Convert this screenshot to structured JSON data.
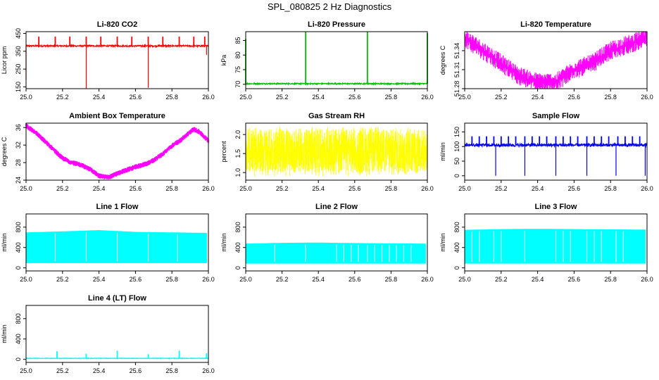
{
  "figure_title": "SPL_080825  2 Hz Diagnostics",
  "chart_data": [
    {
      "type": "line",
      "title": "Li-820 CO2",
      "ylabel": "Licor ppm",
      "color": "#ff0000",
      "xlim": [
        25.0,
        26.0
      ],
      "ylim": [
        140,
        460
      ],
      "x_ticks": [
        25.0,
        25.2,
        25.4,
        25.6,
        25.8,
        26.0
      ],
      "y_ticks": [
        150,
        250,
        350,
        450
      ],
      "x_tick_labels": [
        "25.0",
        "25.2",
        "25.4",
        "25.6",
        "25.8",
        "26.0"
      ],
      "y_tick_labels": [
        "150",
        "250",
        "350",
        "450"
      ],
      "series": [
        {
          "pattern": "spiky",
          "base": 380,
          "noise": 4,
          "min": 350,
          "max": 432,
          "up_spikes": [
            25.07,
            25.16,
            25.24,
            25.33,
            25.41,
            25.5,
            25.58,
            25.67,
            25.75,
            25.84,
            25.92,
            25.98
          ],
          "down_spikes": [
            [
              25.33,
              140
            ],
            [
              25.67,
              145
            ],
            [
              25.0,
              190
            ],
            [
              25.99,
              330
            ]
          ]
        }
      ]
    },
    {
      "type": "line",
      "title": "Li-820 Pressure",
      "ylabel": "kPa",
      "color": "#00c000",
      "xlim": [
        25.0,
        26.0
      ],
      "ylim": [
        68.5,
        88
      ],
      "x_ticks": [
        25.0,
        25.2,
        25.4,
        25.6,
        25.8,
        26.0
      ],
      "y_ticks": [
        70,
        75,
        80,
        85
      ],
      "x_tick_labels": [
        "25.0",
        "25.2",
        "25.4",
        "25.6",
        "25.8",
        "26.0"
      ],
      "y_tick_labels": [
        "70",
        "75",
        "80",
        "85"
      ],
      "series": [
        {
          "pattern": "spiky",
          "base": 70.2,
          "noise": 0.2,
          "min": 69.5,
          "max": 70.6,
          "up_spikes": [
            [
              25.0,
              85.5
            ],
            [
              25.33,
              88
            ],
            [
              25.67,
              88
            ],
            [
              26.0,
              87.5
            ]
          ],
          "down_spikes": []
        }
      ]
    },
    {
      "type": "line",
      "title": "Li-820 Temperature",
      "ylabel": "degrees C",
      "color": "#ff00ff",
      "xlim": [
        25.0,
        26.0
      ],
      "ylim": [
        51.28,
        51.37
      ],
      "x_ticks": [
        25.0,
        25.2,
        25.4,
        25.6,
        25.8,
        26.0
      ],
      "y_ticks": [
        51.28,
        51.31,
        51.34
      ],
      "x_tick_labels": [
        "25.0",
        "25.2",
        "25.4",
        "25.6",
        "25.8",
        "26.0"
      ],
      "y_tick_labels": [
        "51.28",
        "51.31",
        "51.34"
      ],
      "series": [
        {
          "pattern": "banded",
          "points": [
            [
              25.0,
              51.36
            ],
            [
              25.1,
              51.34
            ],
            [
              25.2,
              51.32
            ],
            [
              25.3,
              51.3
            ],
            [
              25.4,
              51.29
            ],
            [
              25.5,
              51.29
            ],
            [
              25.6,
              51.31
            ],
            [
              25.7,
              51.32
            ],
            [
              25.8,
              51.34
            ],
            [
              25.9,
              51.35
            ],
            [
              26.0,
              51.36
            ]
          ],
          "band": 0.015
        }
      ]
    },
    {
      "type": "line",
      "title": "Ambient Box Temperature",
      "ylabel": "degrees C",
      "color": "#ff00ff",
      "xlim": [
        25.0,
        26.0
      ],
      "ylim": [
        24,
        37
      ],
      "x_ticks": [
        25.0,
        25.2,
        25.4,
        25.6,
        25.8,
        26.0
      ],
      "y_ticks": [
        24,
        28,
        32,
        36
      ],
      "x_tick_labels": [
        "25.0",
        "25.2",
        "25.4",
        "25.6",
        "25.8",
        "26.0"
      ],
      "y_tick_labels": [
        "24",
        "28",
        "32",
        "36"
      ],
      "series": [
        {
          "pattern": "smooth",
          "points": [
            [
              25.0,
              36.4
            ],
            [
              25.05,
              35
            ],
            [
              25.1,
              33
            ],
            [
              25.15,
              31
            ],
            [
              25.2,
              29
            ],
            [
              25.25,
              28
            ],
            [
              25.3,
              27.5
            ],
            [
              25.35,
              26.5
            ],
            [
              25.4,
              25
            ],
            [
              25.45,
              24.6
            ],
            [
              25.5,
              25.5
            ],
            [
              25.55,
              26.3
            ],
            [
              25.6,
              27
            ],
            [
              25.65,
              27.6
            ],
            [
              25.7,
              28.5
            ],
            [
              25.75,
              30
            ],
            [
              25.8,
              31.8
            ],
            [
              25.85,
              33.2
            ],
            [
              25.9,
              35
            ],
            [
              25.92,
              35.6
            ],
            [
              25.95,
              35
            ],
            [
              26.0,
              33
            ]
          ],
          "band": 0.6
        }
      ]
    },
    {
      "type": "line",
      "title": "Gas Stream RH",
      "ylabel": "percent",
      "color": "#ffff00",
      "xlim": [
        25.0,
        26.0
      ],
      "ylim": [
        0.8,
        2.3
      ],
      "x_ticks": [
        25.0,
        25.2,
        25.4,
        25.6,
        25.8,
        26.0
      ],
      "y_ticks": [
        1.0,
        1.5,
        2.0
      ],
      "x_tick_labels": [
        "25.0",
        "25.2",
        "25.4",
        "25.6",
        "25.8",
        "26.0"
      ],
      "y_tick_labels": [
        "1.0",
        "1.5",
        "2.0"
      ],
      "series": [
        {
          "pattern": "noisy",
          "low": 1.0,
          "high": 2.15,
          "base_low": 1.3,
          "base_high": 1.95,
          "min": 0.9,
          "max": 2.2
        }
      ]
    },
    {
      "type": "line",
      "title": "Sample Flow",
      "ylabel": "ml/min",
      "color": "#0000ff",
      "xlim": [
        25.0,
        26.0
      ],
      "ylim": [
        -15,
        180
      ],
      "x_ticks": [
        25.0,
        25.2,
        25.4,
        25.6,
        25.8,
        26.0
      ],
      "y_ticks": [
        0,
        50,
        100,
        150
      ],
      "x_tick_labels": [
        "25.0",
        "25.2",
        "25.4",
        "25.6",
        "25.8",
        "26.0"
      ],
      "y_tick_labels": [
        "0",
        "50",
        "100",
        "150"
      ],
      "series": [
        {
          "pattern": "spiky",
          "base": 105,
          "noise": 5,
          "min": 95,
          "max": 135,
          "up_spikes": [
            25.04,
            25.08,
            25.12,
            25.16,
            25.2,
            25.24,
            25.28,
            25.33,
            25.37,
            25.41,
            25.45,
            25.5,
            25.54,
            25.58,
            25.62,
            25.67,
            25.71,
            25.75,
            25.79,
            25.84,
            25.88,
            25.92,
            25.96
          ],
          "down_spikes": [
            [
              25.17,
              0
            ],
            [
              25.33,
              0
            ],
            [
              25.5,
              0
            ],
            [
              25.67,
              0
            ],
            [
              25.83,
              0
            ],
            [
              25.99,
              0
            ]
          ]
        }
      ]
    },
    {
      "type": "area",
      "title": "Line 1 Flow",
      "ylabel": "ml/min",
      "color": "#00ffff",
      "xlim": [
        25.0,
        26.0
      ],
      "ylim": [
        -60,
        1060
      ],
      "x_ticks": [
        25.0,
        25.2,
        25.4,
        25.6,
        25.8,
        26.0
      ],
      "y_ticks": [
        0,
        400,
        800
      ],
      "x_tick_labels": [
        "25.0",
        "25.2",
        "25.4",
        "25.6",
        "25.8",
        "26.0"
      ],
      "y_tick_labels": [
        "0",
        "400",
        "800"
      ],
      "series": [
        {
          "pattern": "block",
          "low": 100,
          "top": [
            [
              25.0,
              690
            ],
            [
              25.2,
              710
            ],
            [
              25.4,
              735
            ],
            [
              25.6,
              700
            ],
            [
              25.8,
              690
            ],
            [
              25.99,
              680
            ]
          ],
          "gaps": [
            25.16,
            25.33,
            25.5,
            25.67,
            25.83
          ]
        }
      ]
    },
    {
      "type": "area",
      "title": "Line 2 Flow",
      "ylabel": "ml/min",
      "color": "#00ffff",
      "xlim": [
        25.0,
        26.0
      ],
      "ylim": [
        -60,
        1060
      ],
      "x_ticks": [
        25.0,
        25.2,
        25.4,
        25.6,
        25.8,
        26.0
      ],
      "y_ticks": [
        0,
        400,
        800
      ],
      "x_tick_labels": [
        "25.0",
        "25.2",
        "25.4",
        "25.6",
        "25.8",
        "26.0"
      ],
      "y_tick_labels": [
        "0",
        "400",
        "800"
      ],
      "series": [
        {
          "pattern": "block",
          "low": 90,
          "top": [
            [
              25.0,
              470
            ],
            [
              25.2,
              485
            ],
            [
              25.4,
              490
            ],
            [
              25.6,
              480
            ],
            [
              25.8,
              475
            ],
            [
              25.99,
              470
            ]
          ],
          "gaps": [
            25.16,
            25.33,
            25.5,
            25.54,
            25.58,
            25.62,
            25.67,
            25.71,
            25.75,
            25.79,
            25.83,
            25.87,
            25.91
          ]
        }
      ]
    },
    {
      "type": "area",
      "title": "Line 3 Flow",
      "ylabel": "ml/min",
      "color": "#00ffff",
      "xlim": [
        25.0,
        26.0
      ],
      "ylim": [
        -60,
        1060
      ],
      "x_ticks": [
        25.0,
        25.2,
        25.4,
        25.6,
        25.8,
        26.0
      ],
      "y_ticks": [
        0,
        400,
        800
      ],
      "x_tick_labels": [
        "25.0",
        "25.2",
        "25.4",
        "25.6",
        "25.8",
        "26.0"
      ],
      "y_tick_labels": [
        "0",
        "400",
        "800"
      ],
      "series": [
        {
          "pattern": "block",
          "low": 90,
          "top": [
            [
              25.0,
              740
            ],
            [
              25.2,
              755
            ],
            [
              25.4,
              760
            ],
            [
              25.6,
              755
            ],
            [
              25.8,
              750
            ],
            [
              25.99,
              745
            ]
          ],
          "gaps": [
            25.04,
            25.08,
            25.16,
            25.2,
            25.33,
            25.5,
            25.54,
            25.58,
            25.67,
            25.71,
            25.75,
            25.83,
            25.87
          ]
        }
      ]
    },
    {
      "type": "line",
      "title": "Line 4 (LT) Flow",
      "ylabel": "ml/min",
      "color": "#00ffff",
      "xlim": [
        25.0,
        26.0
      ],
      "ylim": [
        -60,
        1060
      ],
      "x_ticks": [
        25.0,
        25.2,
        25.4,
        25.6,
        25.8,
        26.0
      ],
      "y_ticks": [
        0,
        400,
        800
      ],
      "x_tick_labels": [
        "25.0",
        "25.2",
        "25.4",
        "25.6",
        "25.8",
        "26.0"
      ],
      "y_tick_labels": [
        "0",
        "400",
        "800"
      ],
      "series": [
        {
          "pattern": "spiky",
          "base": 20,
          "noise": 6,
          "min": 10,
          "max": 35,
          "up_spikes": [
            [
              25.17,
              160
            ],
            [
              25.33,
              110
            ],
            [
              25.5,
              170
            ],
            [
              25.67,
              100
            ],
            [
              25.84,
              170
            ],
            [
              25.99,
              120
            ]
          ],
          "down_spikes": []
        }
      ]
    }
  ]
}
